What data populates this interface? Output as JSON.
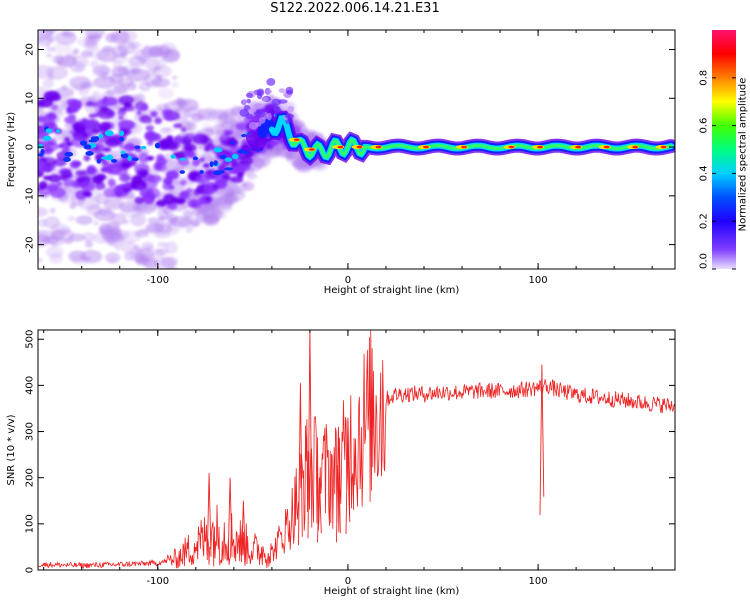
{
  "figure": {
    "title": "S122.2022.006.14.21.E31"
  },
  "chart_data": [
    {
      "type": "heatmap",
      "xlabel": "Height of straight line (km)",
      "ylabel": "Frequency (Hz)",
      "xlim": [
        -163,
        172
      ],
      "ylim": [
        -25,
        24
      ],
      "x_ticks": [
        -100,
        0,
        100
      ],
      "y_ticks": [
        -20,
        -10,
        0,
        10,
        20
      ],
      "colorbar": {
        "label": "Normalized spectral amplitude",
        "range": [
          0.0,
          1.0
        ],
        "ticks": [
          0.0,
          0.2,
          0.4,
          0.6,
          0.8
        ],
        "colormap": [
          "#d8ccf8",
          "#7000ff",
          "#0000ff",
          "#00e0ff",
          "#00ff40",
          "#ffff00",
          "#ff8000",
          "#ff0000",
          "#ff1060"
        ]
      },
      "ridge_center_hz": [
        [
          -160,
          1
        ],
        [
          -140,
          0
        ],
        [
          -120,
          0
        ],
        [
          -100,
          -2
        ],
        [
          -80,
          -5
        ],
        [
          -60,
          -2
        ],
        [
          -45,
          3
        ],
        [
          -35,
          5
        ],
        [
          -25,
          0
        ],
        [
          -15,
          -1
        ],
        [
          -5,
          0
        ],
        [
          10,
          0
        ],
        [
          40,
          0
        ],
        [
          80,
          0
        ],
        [
          120,
          0
        ],
        [
          150,
          0
        ],
        [
          170,
          0
        ]
      ]
    },
    {
      "type": "line",
      "xlabel": "Height of straight line (km)",
      "ylabel": "SNR (10 * v/v)",
      "xlim": [
        -163,
        172
      ],
      "ylim": [
        0,
        520
      ],
      "x_ticks": [
        -100,
        0,
        100
      ],
      "y_ticks": [
        0,
        100,
        200,
        300,
        400,
        500
      ],
      "color": "#ee2222",
      "points": [
        [
          -163,
          12
        ],
        [
          -140,
          10
        ],
        [
          -120,
          12
        ],
        [
          -100,
          15
        ],
        [
          -90,
          25
        ],
        [
          -80,
          55
        ],
        [
          -70,
          80
        ],
        [
          -60,
          70
        ],
        [
          -50,
          45
        ],
        [
          -40,
          35
        ],
        [
          -30,
          110
        ],
        [
          -25,
          180
        ],
        [
          -20,
          230
        ],
        [
          -15,
          200
        ],
        [
          -10,
          210
        ],
        [
          -5,
          200
        ],
        [
          0,
          260
        ],
        [
          5,
          290
        ],
        [
          10,
          320
        ],
        [
          15,
          350
        ],
        [
          20,
          370
        ],
        [
          25,
          380
        ],
        [
          30,
          382
        ],
        [
          40,
          382
        ],
        [
          50,
          385
        ],
        [
          60,
          385
        ],
        [
          70,
          388
        ],
        [
          80,
          388
        ],
        [
          90,
          390
        ],
        [
          100,
          395
        ],
        [
          105,
          400
        ],
        [
          110,
          390
        ],
        [
          120,
          380
        ],
        [
          130,
          375
        ],
        [
          140,
          370
        ],
        [
          150,
          365
        ],
        [
          160,
          360
        ],
        [
          172,
          355
        ]
      ],
      "peaks": [
        [
          -73,
          210
        ],
        [
          -62,
          200
        ],
        [
          -55,
          150
        ],
        [
          -25,
          405
        ],
        [
          -20,
          520
        ],
        [
          -15,
          200
        ],
        [
          -5,
          310
        ],
        [
          0,
          330
        ],
        [
          102,
          445
        ]
      ]
    }
  ]
}
